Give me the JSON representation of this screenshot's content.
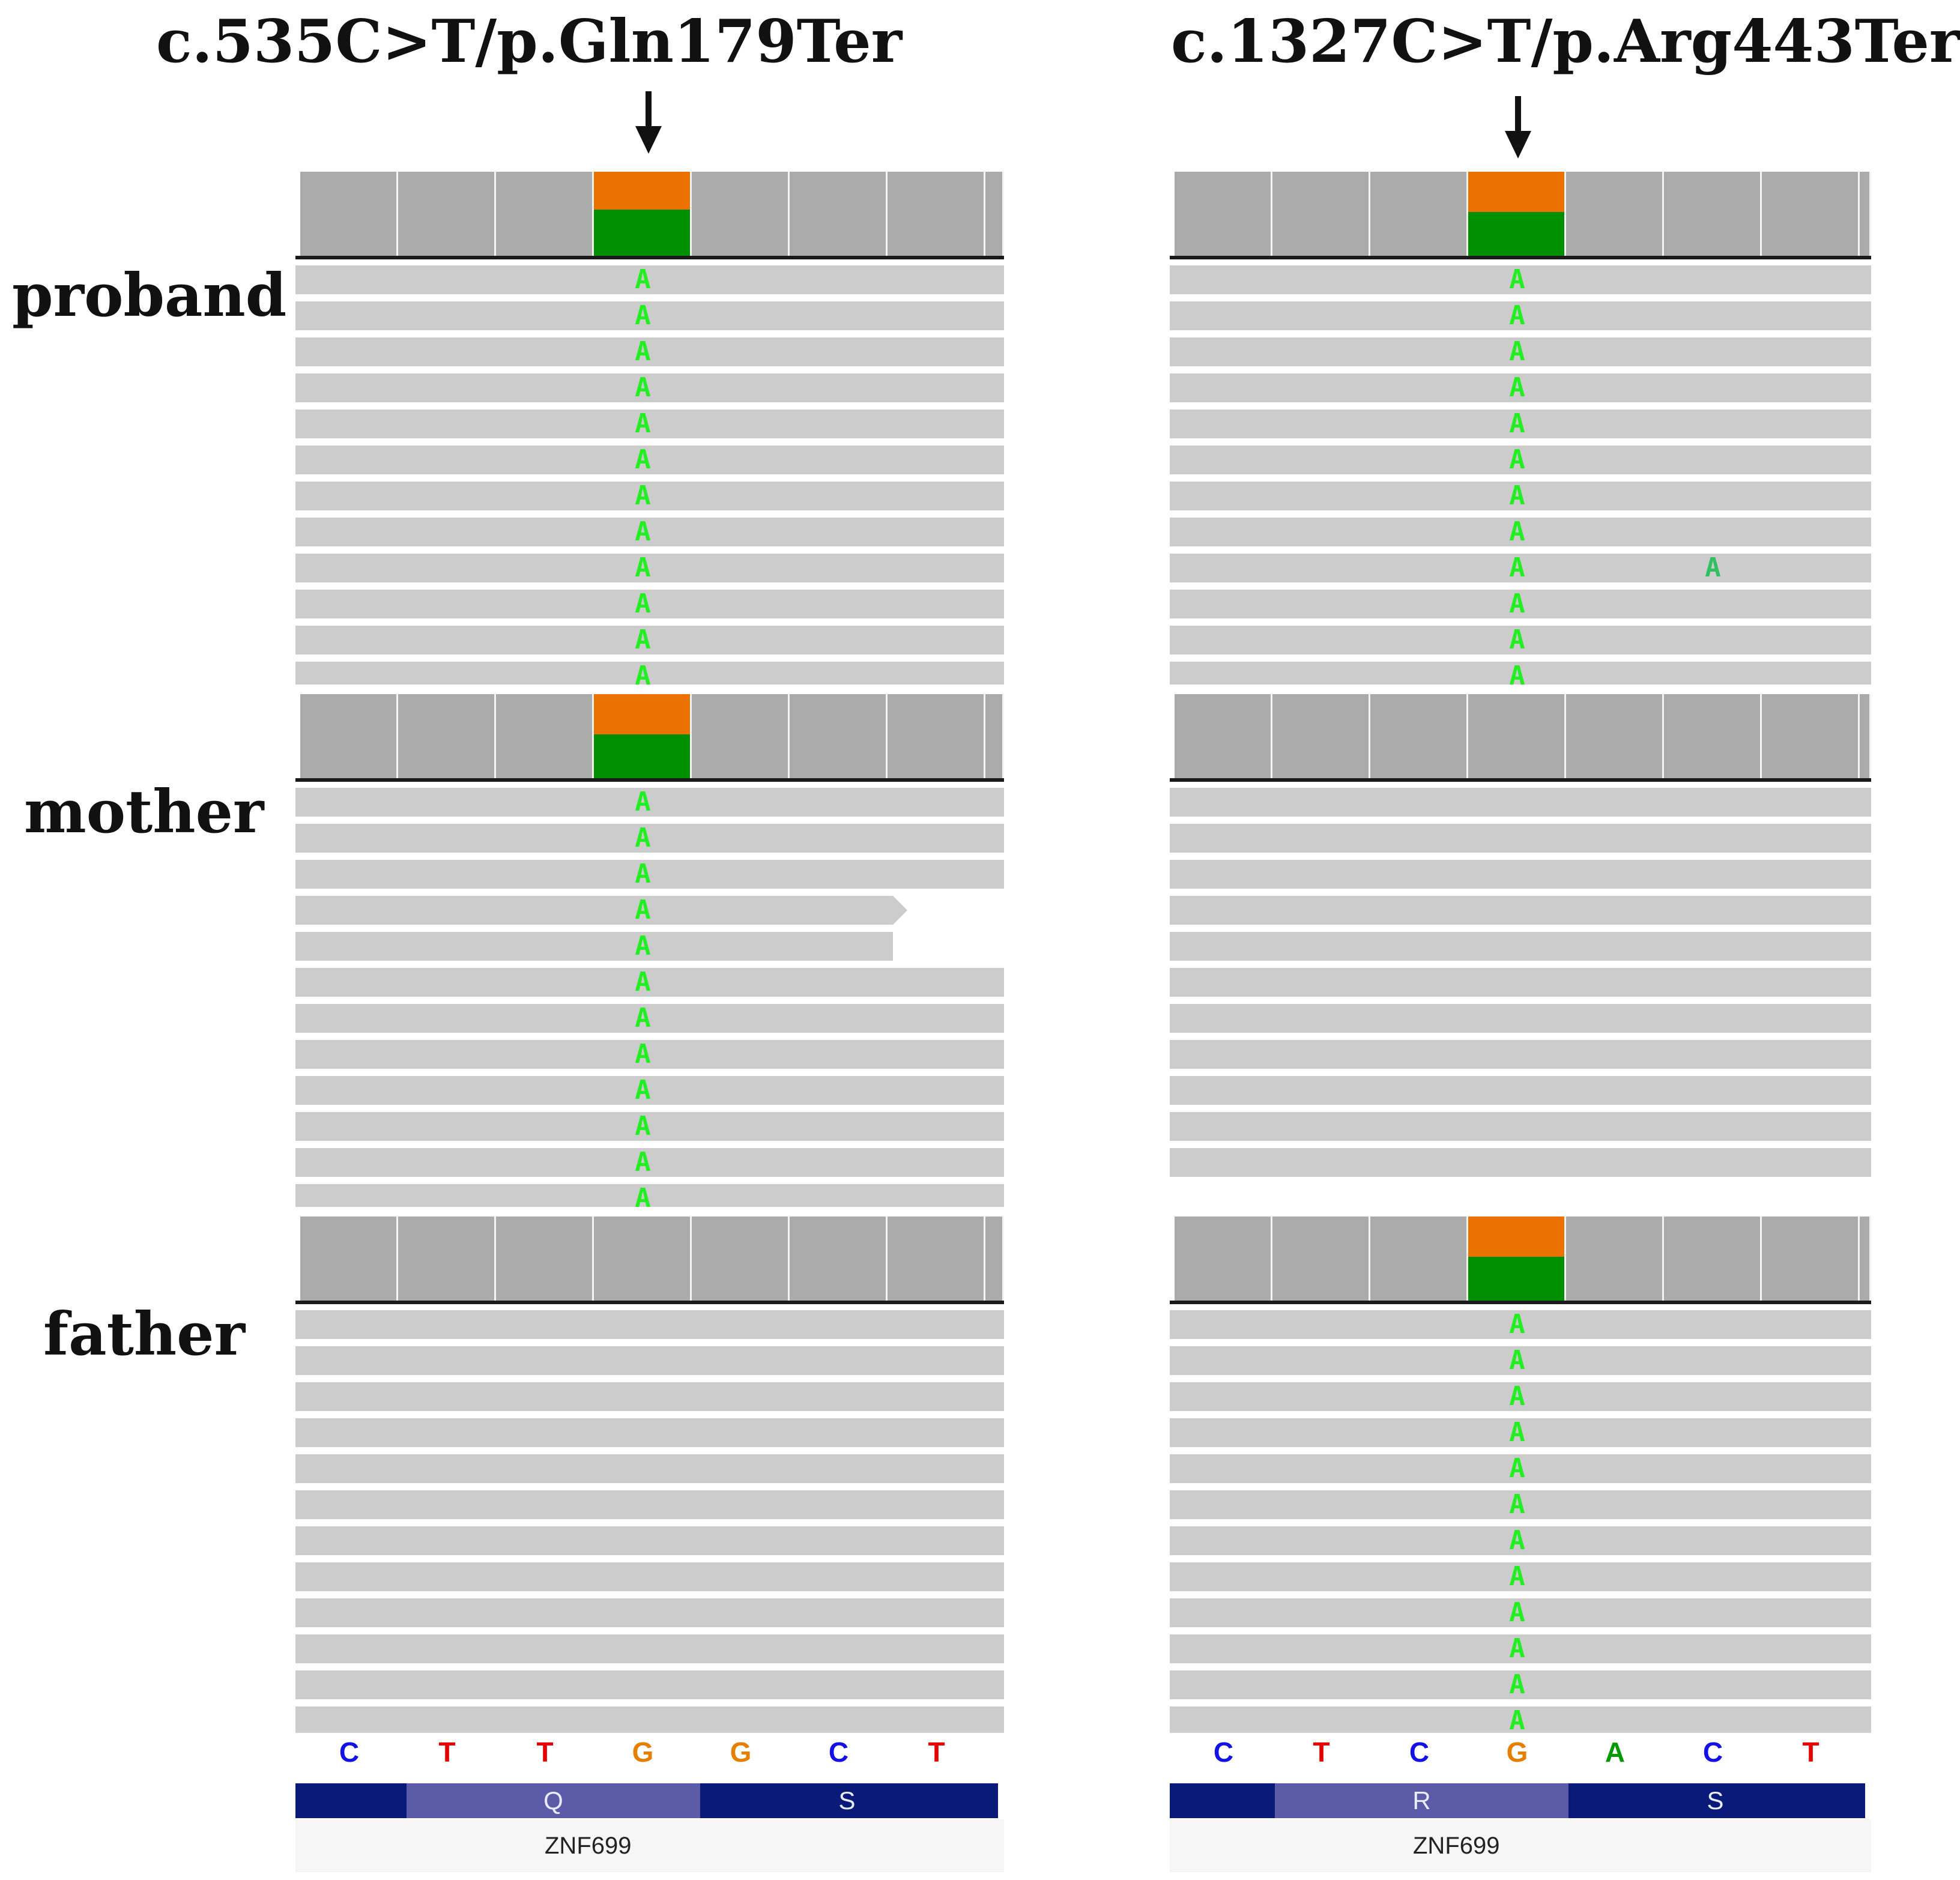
{
  "columns": [
    {
      "id": "left",
      "title": "c.535C>T/p.Gln179Ter",
      "variant_index": 3,
      "gene": "ZNF699",
      "reference_bases": [
        "C",
        "T",
        "T",
        "G",
        "G",
        "C",
        "T"
      ],
      "amino_acids": [
        {
          "label": "Q",
          "shade": "light"
        },
        {
          "label": "S",
          "shade": "dark"
        }
      ],
      "samples": [
        {
          "name": "proband",
          "allele_split": 0.45,
          "variant_reads": 12,
          "total_reads": 12,
          "read_mismatch": "A"
        },
        {
          "name": "mother",
          "allele_split": 0.48,
          "variant_reads": 12,
          "total_reads": 12,
          "read_mismatch": "A"
        },
        {
          "name": "father",
          "allele_split": null,
          "variant_reads": 0,
          "total_reads": 12,
          "read_mismatch": ""
        }
      ]
    },
    {
      "id": "right",
      "title": "c.1327C>T/p.Arg443Ter",
      "variant_index": 3,
      "gene": "ZNF699",
      "reference_bases": [
        "C",
        "T",
        "C",
        "G",
        "A",
        "C",
        "T"
      ],
      "amino_acids": [
        {
          "label": "R",
          "shade": "light"
        },
        {
          "label": "S",
          "shade": "dark"
        }
      ],
      "samples": [
        {
          "name": "proband",
          "allele_split": 0.48,
          "variant_reads": 12,
          "total_reads": 12,
          "read_mismatch": "A",
          "extra_mismatch": {
            "read": 9,
            "base": "A"
          }
        },
        {
          "name": "mother",
          "allele_split": null,
          "variant_reads": 0,
          "total_reads": 11,
          "read_mismatch": ""
        },
        {
          "name": "father",
          "allele_split": 0.48,
          "variant_reads": 12,
          "total_reads": 12,
          "read_mismatch": "A"
        }
      ]
    }
  ],
  "row_labels": [
    "proband",
    "mother",
    "father"
  ],
  "base_colors": {
    "A": "#009900",
    "C": "#1212e6",
    "G": "#e67e00",
    "T": "#e60000"
  },
  "colors": {
    "ref_allele": "#ec7200",
    "alt_allele": "#008f00",
    "coverage": "#ababab",
    "read": "#cccccc",
    "mismatch": "#22ee22"
  }
}
